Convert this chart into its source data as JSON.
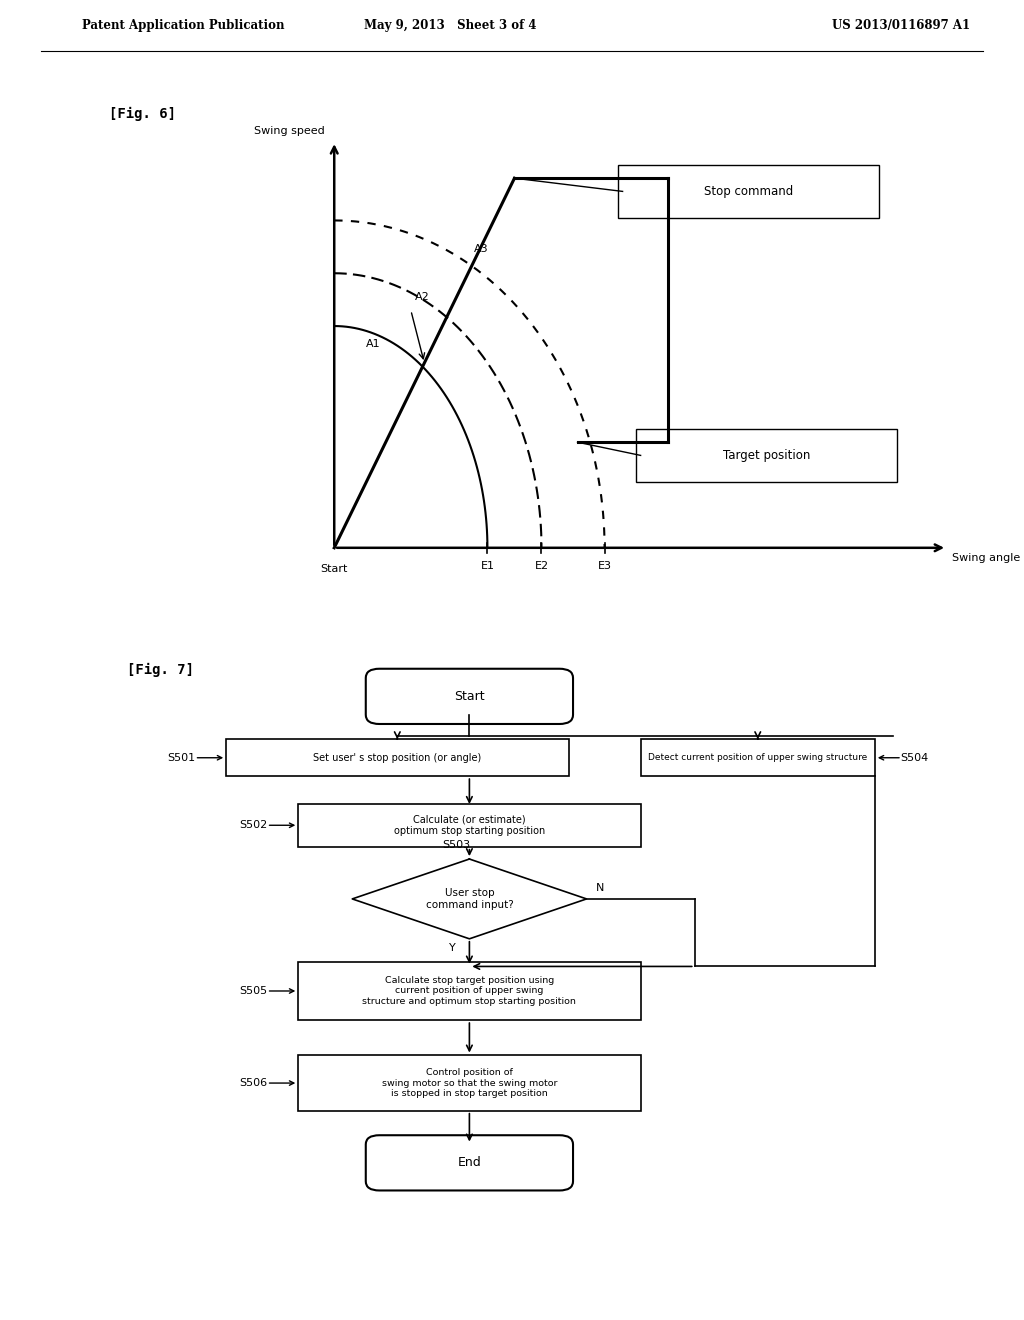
{
  "bg_color": "#ffffff",
  "header_left": "Patent Application Publication",
  "header_mid": "May 9, 2013   Sheet 3 of 4",
  "header_right": "US 2013/0116897 A1",
  "fig6_label": "[Fig. 6]",
  "fig7_label": "[Fig. 7]",
  "swing_speed_label": "Swing speed",
  "swing_angle_label": "Swing angle",
  "start_label": "Start",
  "stop_command_label": "Stop command",
  "target_position_label": "Target position",
  "A1": "A1",
  "A2": "A2",
  "A3": "A3",
  "E1": "E1",
  "E2": "E2",
  "E3": "E3",
  "fc_start": "Start",
  "fc_end": "End",
  "s501": "S501",
  "s502": "S502",
  "s503": "S503",
  "s504": "S504",
  "s505": "S505",
  "s506": "S506",
  "s501_text": "Set user' s stop position (or angle)",
  "s504_text": "Detect current position of upper swing structure",
  "s502_text": "Calculate (or estimate)\noptimum stop starting position",
  "s503_text": "User stop\ncommand input?",
  "N_label": "N",
  "Y_label": "Y",
  "s505_text": "Calculate stop target position using\ncurrent position of upper swing\nstructure and optimum stop starting position",
  "s506_text": "Control position of\nswing motor so that the swing motor\nis stopped in stop target position"
}
